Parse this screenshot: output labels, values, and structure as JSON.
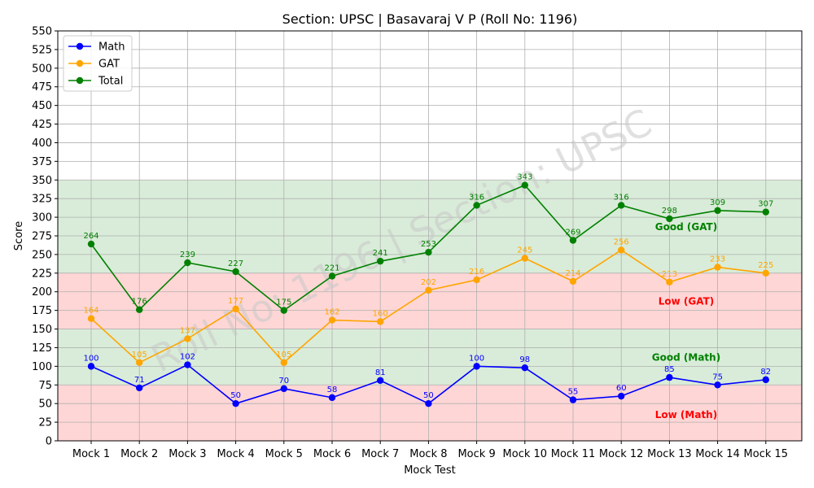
{
  "chart_data": {
    "type": "line",
    "title": "Section: UPSC | Basavaraj V P (Roll No: 1196)",
    "xlabel": "Mock Test",
    "ylabel": "Score",
    "ylim": [
      0,
      550
    ],
    "ytick_step": 25,
    "grid": true,
    "legend_position": "top-left",
    "categories": [
      "Mock 1",
      "Mock 2",
      "Mock 3",
      "Mock 4",
      "Mock 5",
      "Mock 6",
      "Mock 7",
      "Mock 8",
      "Mock 9",
      "Mock 10",
      "Mock 11",
      "Mock 12",
      "Mock 13",
      "Mock 14",
      "Mock 15"
    ],
    "series": [
      {
        "name": "Math",
        "color": "#0000ff",
        "values": [
          100,
          71,
          102,
          50,
          70,
          58,
          81,
          50,
          100,
          98,
          55,
          60,
          85,
          75,
          82
        ]
      },
      {
        "name": "GAT",
        "color": "#ffa500",
        "values": [
          164,
          105,
          137,
          177,
          105,
          162,
          160,
          202,
          216,
          245,
          214,
          256,
          213,
          233,
          225
        ]
      },
      {
        "name": "Total",
        "color": "#008000",
        "values": [
          264,
          176,
          239,
          227,
          175,
          221,
          241,
          253,
          316,
          343,
          269,
          316,
          298,
          309,
          307
        ]
      }
    ],
    "bands": [
      {
        "from": 0,
        "to": 75,
        "color": "#ffd6d6",
        "label": "Low (Math)",
        "label_color": "#ff0000",
        "label_y": 35
      },
      {
        "from": 75,
        "to": 150,
        "color": "#d9ecd9",
        "label": "Good (Math)",
        "label_color": "#008000",
        "label_y": 112
      },
      {
        "from": 150,
        "to": 225,
        "color": "#ffd6d6",
        "label": "Low (GAT)",
        "label_color": "#ff0000",
        "label_y": 187
      },
      {
        "from": 225,
        "to": 350,
        "color": "#d9ecd9",
        "label": "Good (GAT)",
        "label_color": "#008000",
        "label_y": 287
      }
    ],
    "watermark": "Roll No: 1196 | Section: UPSC"
  }
}
